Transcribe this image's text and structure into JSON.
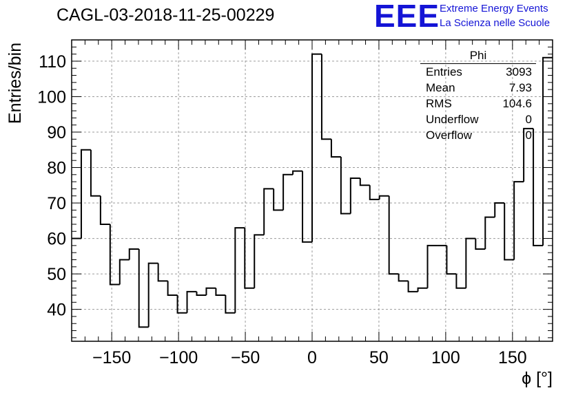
{
  "title": "CAGL-03-2018-11-25-00229",
  "logo": {
    "mark": "EEE",
    "line1": "Extreme Energy Events",
    "line2": "La Scienza nelle Scuole"
  },
  "stats": {
    "name": "Phi",
    "rows": [
      {
        "label": "Entries",
        "value": "3093"
      },
      {
        "label": "Mean",
        "value": "7.93"
      },
      {
        "label": "RMS",
        "value": "104.6"
      },
      {
        "label": "Underflow",
        "value": "0"
      },
      {
        "label": "Overflow",
        "value": "0"
      }
    ]
  },
  "chart_data": {
    "type": "bar",
    "style": "step-histogram",
    "title": "CAGL-03-2018-11-25-00229",
    "xlabel": "ϕ [°]",
    "ylabel": "Entries/bin",
    "xlim": [
      -180,
      180
    ],
    "ylim": [
      31,
      116
    ],
    "bin_width": 7.2,
    "grid": true,
    "x_ticks": [
      -150,
      -100,
      -50,
      0,
      50,
      100,
      150
    ],
    "x_tick_labels": [
      "−150",
      "−100",
      "−50",
      "0",
      "50",
      "100",
      "150"
    ],
    "y_ticks": [
      40,
      50,
      60,
      70,
      80,
      90,
      100,
      110
    ],
    "y_tick_labels": [
      "40",
      "50",
      "60",
      "70",
      "80",
      "90",
      "100",
      "110"
    ],
    "bin_edges_start": -180,
    "values": [
      60,
      85,
      72,
      64,
      47,
      54,
      57,
      35,
      53,
      48,
      44,
      39,
      45,
      44,
      46,
      44,
      39,
      63,
      46,
      61,
      74,
      68,
      78,
      79,
      59,
      112,
      88,
      83,
      67,
      77,
      75,
      71,
      72,
      50,
      48,
      45,
      46,
      58,
      58,
      50,
      46,
      60,
      57,
      66,
      70,
      54,
      76,
      91,
      58,
      111
    ]
  }
}
